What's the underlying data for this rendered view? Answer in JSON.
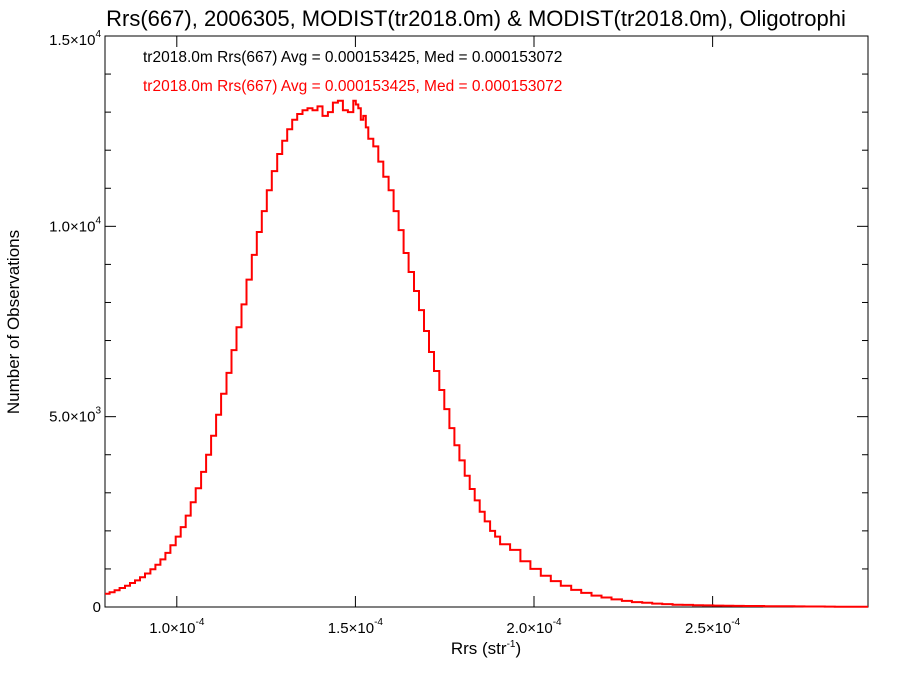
{
  "chart_data": {
    "type": "histogram",
    "title": "Rrs(667), 2006305, MODIST(tr2018.0m) & MODIST(tr2018.0m), Oligotrophi",
    "xlabel": {
      "base": "Rrs (str",
      "exponent": "-1",
      "close": ")"
    },
    "ylabel": "Number of Observations",
    "xlim": [
      7.99e-05,
      0.0002935
    ],
    "ylim": [
      0,
      15000
    ],
    "x_ticks": [
      {
        "value": 0.0001,
        "mantissa": "1.0",
        "exponent": "-4"
      },
      {
        "value": 0.00015,
        "mantissa": "1.5",
        "exponent": "-4"
      },
      {
        "value": 0.0002,
        "mantissa": "2.0",
        "exponent": "-4"
      },
      {
        "value": 0.00025,
        "mantissa": "2.5",
        "exponent": "-4"
      }
    ],
    "y_ticks": [
      {
        "value": 0,
        "mantissa": "0",
        "exponent": ""
      },
      {
        "value": 5000,
        "mantissa": "5.0",
        "exponent": "3"
      },
      {
        "value": 10000,
        "mantissa": "1.0",
        "exponent": "4"
      },
      {
        "value": 15000,
        "mantissa": "1.5",
        "exponent": "4"
      }
    ],
    "annotations": [
      {
        "text": "tr2018.0m Rrs(667) Avg = 0.000153425, Med = 0.000153072",
        "color": "#000000"
      },
      {
        "text": "tr2018.0m Rrs(667) Avg = 0.000153425, Med = 0.000153072",
        "color": "#ff0000"
      }
    ],
    "series": [
      {
        "color": "#ff0000",
        "x": [
          7.99e-05,
          8.12e-05,
          8.26e-05,
          8.4e-05,
          8.55e-05,
          8.69e-05,
          8.83e-05,
          8.97e-05,
          9.11e-05,
          9.26e-05,
          9.4e-05,
          9.54e-05,
          9.68e-05,
          9.82e-05,
          9.97e-05,
          0.0001011,
          0.0001025,
          0.0001039,
          0.0001053,
          0.0001068,
          0.0001082,
          0.0001096,
          0.000111,
          0.0001124,
          0.0001139,
          0.0001153,
          0.0001167,
          0.0001181,
          0.0001195,
          0.000121,
          0.0001224,
          0.0001238,
          0.0001252,
          0.0001266,
          0.0001281,
          0.0001295,
          0.0001309,
          0.0001323,
          0.0001337,
          0.0001352,
          0.0001366,
          0.000138,
          0.0001394,
          0.0001408,
          0.0001423,
          0.0001437,
          0.0001451,
          0.0001465,
          0.0001479,
          0.0001494,
          0.0001501,
          0.0001508,
          0.0001515,
          0.0001522,
          0.0001529,
          0.0001536,
          0.000155,
          0.0001564,
          0.0001578,
          0.0001593,
          0.0001607,
          0.0001621,
          0.0001635,
          0.0001649,
          0.0001664,
          0.0001678,
          0.0001692,
          0.0001706,
          0.000172,
          0.0001735,
          0.0001749,
          0.0001763,
          0.0001777,
          0.0001791,
          0.0001806,
          0.000182,
          0.0001834,
          0.0001848,
          0.0001862,
          0.0001877,
          0.0001891,
          0.0001905,
          0.0001933,
          0.0001962,
          0.000199,
          0.0002019,
          0.0002047,
          0.0002075,
          0.0002104,
          0.0002132,
          0.0002161,
          0.0002189,
          0.0002217,
          0.0002246,
          0.0002274,
          0.0002303,
          0.0002331,
          0.0002359,
          0.0002388,
          0.0002416,
          0.0002445,
          0.0002473,
          0.0002502,
          0.000253,
          0.0002558,
          0.0002587,
          0.0002615,
          0.0002644,
          0.0002672,
          0.00027,
          0.0002729,
          0.0002757,
          0.0002786,
          0.0002814,
          0.0002842,
          0.0002871,
          0.0002899,
          0.0002935
        ],
        "y": [
          350,
          390,
          440,
          500,
          560,
          630,
          700,
          780,
          880,
          990,
          1110,
          1250,
          1420,
          1620,
          1850,
          2100,
          2400,
          2750,
          3120,
          3550,
          4000,
          4500,
          5050,
          5600,
          6150,
          6750,
          7350,
          7950,
          8600,
          9250,
          9850,
          10400,
          10950,
          11450,
          11900,
          12250,
          12550,
          12800,
          12950,
          13050,
          13100,
          13050,
          13150,
          12900,
          13000,
          13250,
          13300,
          13050,
          13000,
          13300,
          13200,
          13100,
          12800,
          12900,
          12600,
          12300,
          12100,
          11700,
          11300,
          10950,
          10400,
          9900,
          9300,
          8800,
          8300,
          7800,
          7250,
          6700,
          6200,
          5700,
          5200,
          4700,
          4250,
          3850,
          3450,
          3100,
          2800,
          2500,
          2250,
          2000,
          1850,
          1650,
          1500,
          1200,
          1000,
          820,
          680,
          560,
          450,
          370,
          300,
          250,
          200,
          160,
          130,
          110,
          90,
          75,
          60,
          55,
          48,
          42,
          38,
          33,
          30,
          27,
          25,
          22,
          20,
          18,
          15,
          13,
          12,
          10,
          8,
          6,
          5,
          4
        ]
      }
    ]
  }
}
